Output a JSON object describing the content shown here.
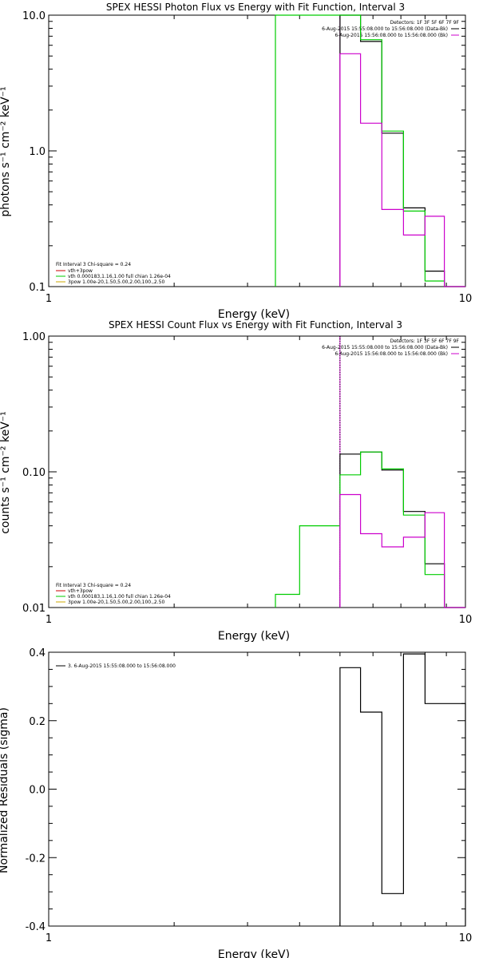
{
  "chart_data": [
    {
      "type": "line",
      "title": "SPEX HESSI Photon Flux vs Energy with Fit Function, Interval 3",
      "xlabel": "Energy (keV)",
      "ylabel": "photons s⁻¹ cm⁻² keV⁻¹",
      "xscale": "log",
      "yscale": "log",
      "xlim": [
        1,
        10
      ],
      "ylim": [
        0.1,
        10
      ],
      "x_ticks": [
        1,
        10
      ],
      "x_tick_labels": [
        "1",
        "10"
      ],
      "y_ticks": [
        0.1,
        1,
        10
      ],
      "y_tick_labels": [
        "0.1",
        "1.0",
        "10.0"
      ],
      "legend_top": {
        "header": "Detectors: 1F 3F 5F 6F 7F 9F",
        "entries": [
          {
            "label": "6-Aug-2015 15:55:08.000 to 15:56:08.000 (Data-Bk)",
            "color": "#000000"
          },
          {
            "label": "6-Aug-2015 15:56:08.000 to 15:56:08.000 (Bk)",
            "color": "#cc00cc"
          }
        ]
      },
      "legend_bottom": {
        "header": "Fit Interval 3   Chi-square = 0.24",
        "entries": [
          {
            "label": "vth+3pow",
            "color": "#cc0000"
          },
          {
            "label": "vth 0.000183,1.16,1.00   full chian 1.26e-04",
            "color": "#00cc00"
          },
          {
            "label": "3pow 1.00e-20,1.50,5.00,2.00,100.,2.50",
            "color": "#ccaa00"
          }
        ]
      },
      "series": [
        {
          "color": "#000000",
          "step_edges": [
            5.0,
            5.6,
            6.3,
            7.1,
            8.0,
            8.9,
            10.0
          ],
          "values": [
            10.5,
            6.4,
            1.35,
            0.38,
            0.13,
            0.1
          ]
        },
        {
          "color": "#00cc00",
          "step_edges": [
            3.5,
            4.0,
            5.0,
            5.6,
            6.3,
            7.1,
            8.0,
            8.9,
            10.0
          ],
          "values": [
            10.5,
            10.5,
            10.5,
            6.6,
            1.4,
            0.36,
            0.11,
            0.1
          ]
        },
        {
          "color": "#cc00cc",
          "step_edges": [
            5.0,
            5.6,
            6.3,
            7.1,
            8.0,
            8.9,
            10.0
          ],
          "values": [
            5.2,
            1.6,
            0.37,
            0.24,
            0.33,
            0.1
          ]
        }
      ],
      "vlines": [
        {
          "x": 3.5,
          "color": "#00cc00"
        },
        {
          "x": 5.0,
          "color": "#cc00cc"
        }
      ]
    },
    {
      "type": "line",
      "title": "SPEX HESSI Count Flux vs Energy with Fit Function, Interval 3",
      "xlabel": "Energy (keV)",
      "ylabel": "counts s⁻¹ cm⁻² keV⁻¹",
      "xscale": "log",
      "yscale": "log",
      "xlim": [
        1,
        10
      ],
      "ylim": [
        0.01,
        1
      ],
      "x_ticks": [
        1,
        10
      ],
      "x_tick_labels": [
        "1",
        "10"
      ],
      "y_ticks": [
        0.01,
        0.1,
        1
      ],
      "y_tick_labels": [
        "0.01",
        "0.10",
        "1.00"
      ],
      "legend_top": {
        "header": "Detectors: 1F 3F 5F 6F 7F 9F",
        "entries": [
          {
            "label": "6-Aug-2015 15:55:08.000 to 15:56:08.000 (Data-Bk)",
            "color": "#000000"
          },
          {
            "label": "6-Aug-2015 15:56:08.000 to 15:56:08.000 (Bk)",
            "color": "#cc00cc"
          }
        ]
      },
      "legend_bottom": {
        "header": "Fit Interval 3   Chi-square = 0.24",
        "entries": [
          {
            "label": "vth+3pow",
            "color": "#cc0000"
          },
          {
            "label": "vth 0.000183,1.16,1.00   full chian 1.26e-04",
            "color": "#00cc00"
          },
          {
            "label": "3pow 1.00e-20,1.50,5.00,2.00,100.,2.50",
            "color": "#ccaa00"
          }
        ]
      },
      "series": [
        {
          "color": "#000000",
          "step_edges": [
            5.0,
            5.6,
            6.3,
            7.1,
            8.0,
            8.9,
            10.0
          ],
          "values": [
            0.135,
            0.14,
            0.103,
            0.051,
            0.021,
            0.01
          ]
        },
        {
          "color": "#00cc00",
          "step_edges": [
            3.5,
            4.0,
            5.0,
            5.6,
            6.3,
            7.1,
            8.0,
            8.9,
            10.0
          ],
          "values": [
            0.0125,
            0.04,
            0.095,
            0.14,
            0.105,
            0.048,
            0.0175,
            0.01
          ]
        },
        {
          "color": "#cc00cc",
          "step_edges": [
            5.0,
            5.6,
            6.3,
            7.1,
            8.0,
            8.9,
            10.0
          ],
          "values": [
            0.068,
            0.035,
            0.028,
            0.033,
            0.05,
            0.01
          ]
        }
      ],
      "vlines": [
        {
          "x": 5.0,
          "color": "#cc00cc"
        },
        {
          "x": 5.0,
          "color": "#000000",
          "dotted": true
        }
      ]
    },
    {
      "type": "line",
      "title": "",
      "xlabel": "Energy (keV)",
      "ylabel": "Normalized Residuals (sigma)",
      "xscale": "log",
      "yscale": "linear",
      "xlim": [
        1,
        10
      ],
      "ylim": [
        -0.4,
        0.4
      ],
      "x_ticks": [
        1,
        10
      ],
      "x_tick_labels": [
        "1",
        "10"
      ],
      "y_ticks": [
        -0.4,
        -0.2,
        0.0,
        0.2,
        0.4
      ],
      "y_tick_labels": [
        "-0.4",
        "-0.2",
        "0.0",
        "0.2",
        "0.4"
      ],
      "legend": {
        "entries": [
          {
            "label": "3.  6-Aug-2015 15:55:08.000 to 15:56:08.000",
            "color": "#000000"
          }
        ]
      },
      "series": [
        {
          "color": "#000000",
          "step_edges": [
            5.0,
            5.6,
            6.3,
            7.1,
            8.0,
            8.9,
            10.0
          ],
          "values": [
            0.355,
            0.225,
            -0.305,
            0.395,
            0.25,
            0.25
          ]
        }
      ],
      "vlines": []
    }
  ]
}
